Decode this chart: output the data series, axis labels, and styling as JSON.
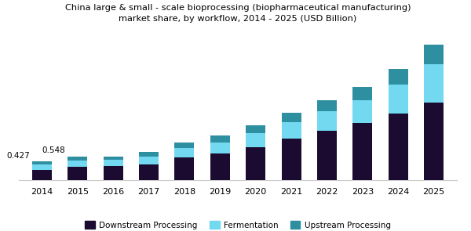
{
  "years": [
    2014,
    2015,
    2016,
    2017,
    2018,
    2019,
    2020,
    2021,
    2022,
    2023,
    2024,
    2025
  ],
  "downstream": [
    0.24,
    0.31,
    0.33,
    0.355,
    0.52,
    0.61,
    0.76,
    0.95,
    1.13,
    1.32,
    1.53,
    1.79
  ],
  "fermentation": [
    0.113,
    0.148,
    0.135,
    0.185,
    0.215,
    0.26,
    0.32,
    0.385,
    0.455,
    0.52,
    0.66,
    0.87
  ],
  "upstream": [
    0.074,
    0.09,
    0.082,
    0.108,
    0.122,
    0.148,
    0.178,
    0.215,
    0.252,
    0.298,
    0.365,
    0.46
  ],
  "annotations": {
    "2014": "0.427",
    "2015": "0.548"
  },
  "colors": {
    "downstream": "#1b0b30",
    "fermentation": "#72d9f0",
    "upstream": "#2e8fa0"
  },
  "title_line1": "China large & small - scale bioprocessing (biopharmaceutical manufacturing)",
  "title_line2": "market share, by workflow, 2014 - 2025 (USD Billion)",
  "legend_labels": [
    "Downstream Processing",
    "Fermentation",
    "Upstream Processing"
  ],
  "background_color": "#ffffff",
  "plot_bg_color": "#ffffff",
  "title_color": "#000000",
  "bar_width": 0.55,
  "ylim": [
    0,
    3.5
  ],
  "title_bar_color": "#6a0572",
  "spine_color": "#cccccc"
}
